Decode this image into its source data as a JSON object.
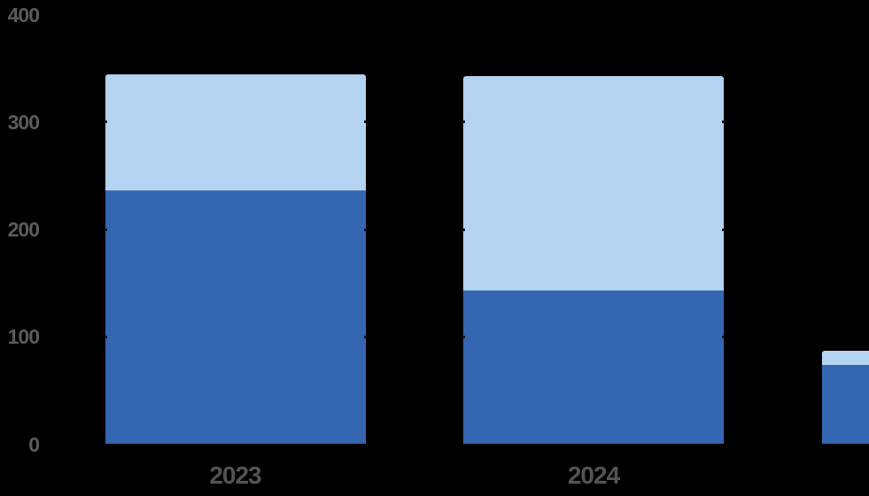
{
  "chart_data": {
    "type": "bar",
    "stacked": true,
    "title": "",
    "xlabel": "",
    "ylabel": "",
    "categories": [
      "2023",
      "2024",
      ""
    ],
    "series": [
      {
        "name": "dark-blue-segment",
        "color": "#3566B1",
        "values": [
          236,
          143,
          74
        ]
      },
      {
        "name": "light-blue-segment",
        "color": "#B4D3F0",
        "values": [
          108,
          200,
          13
        ]
      }
    ],
    "totals": [
      344,
      343,
      87
    ],
    "ylim": [
      0,
      400
    ],
    "y_ticks": [
      0,
      100,
      200,
      300,
      400
    ],
    "y_tick_labels": [
      "0",
      "100",
      "200",
      "300",
      "400"
    ],
    "legend": "none",
    "grid": "off",
    "background_color": "#000000",
    "axis_tick_label_color": "#5B5B59",
    "category_label_color": "#56534E",
    "third_bar_clipped_at_right_edge": true
  }
}
